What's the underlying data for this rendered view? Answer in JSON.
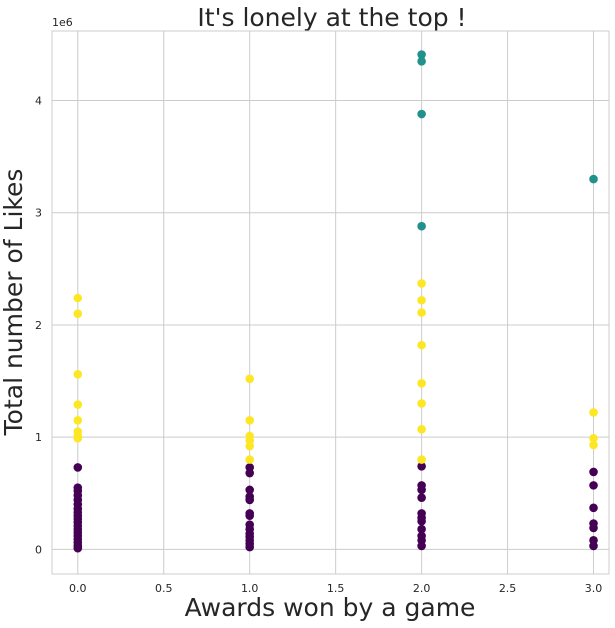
{
  "chart_data": {
    "type": "scatter",
    "title": "It's lonely at the top !",
    "xlabel": "Awards won by a game",
    "ylabel": "Total number of Likes",
    "y_offset_label": "1e6",
    "xlim": [
      -0.15,
      3.09
    ],
    "ylim": [
      -0.22,
      4.62
    ],
    "y_unit_scale": 1000000,
    "x_ticks": [
      0.0,
      0.5,
      1.0,
      1.5,
      2.0,
      2.5,
      3.0
    ],
    "x_tick_labels": [
      "0.0",
      "0.5",
      "1.0",
      "1.5",
      "2.0",
      "2.5",
      "3.0"
    ],
    "y_ticks": [
      0,
      1,
      2,
      3,
      4
    ],
    "y_tick_labels": [
      "0",
      "1",
      "2",
      "3",
      "4"
    ],
    "grid": true,
    "colors": {
      "low": "#440154",
      "mid": "#21918c",
      "high": "#fde725",
      "grid": "#cccccc",
      "text": "#262626"
    },
    "series": [
      {
        "color_key": "low",
        "points": [
          [
            0,
            0.73
          ],
          [
            0,
            0.55
          ],
          [
            0,
            0.52
          ],
          [
            0,
            0.48
          ],
          [
            0,
            0.44
          ],
          [
            0,
            0.4
          ],
          [
            0,
            0.36
          ],
          [
            0,
            0.33
          ],
          [
            0,
            0.3
          ],
          [
            0,
            0.27
          ],
          [
            0,
            0.24
          ],
          [
            0,
            0.21
          ],
          [
            0,
            0.18
          ],
          [
            0,
            0.15
          ],
          [
            0,
            0.12
          ],
          [
            0,
            0.09
          ],
          [
            0,
            0.06
          ],
          [
            0,
            0.03
          ],
          [
            0,
            0.01
          ],
          [
            1,
            0.73
          ],
          [
            1,
            0.68
          ],
          [
            1,
            0.53
          ],
          [
            1,
            0.47
          ],
          [
            1,
            0.44
          ],
          [
            1,
            0.32
          ],
          [
            1,
            0.3
          ],
          [
            1,
            0.22
          ],
          [
            1,
            0.18
          ],
          [
            1,
            0.14
          ],
          [
            1,
            0.11
          ],
          [
            1,
            0.08
          ],
          [
            1,
            0.05
          ],
          [
            1,
            0.02
          ],
          [
            2,
            0.74
          ],
          [
            2,
            0.57
          ],
          [
            2,
            0.53
          ],
          [
            2,
            0.46
          ],
          [
            2,
            0.32
          ],
          [
            2,
            0.28
          ],
          [
            2,
            0.25
          ],
          [
            2,
            0.18
          ],
          [
            2,
            0.12
          ],
          [
            2,
            0.08
          ],
          [
            2,
            0.03
          ],
          [
            3,
            0.69
          ],
          [
            3,
            0.57
          ],
          [
            3,
            0.37
          ],
          [
            3,
            0.23
          ],
          [
            3,
            0.19
          ],
          [
            3,
            0.08
          ],
          [
            3,
            0.03
          ]
        ]
      },
      {
        "color_key": "mid",
        "points": [
          [
            2,
            4.41
          ],
          [
            2,
            4.35
          ],
          [
            2,
            3.88
          ],
          [
            2,
            2.88
          ],
          [
            3,
            3.3
          ]
        ]
      },
      {
        "color_key": "high",
        "points": [
          [
            0,
            2.24
          ],
          [
            0,
            2.1
          ],
          [
            0,
            1.56
          ],
          [
            0,
            1.29
          ],
          [
            0,
            1.15
          ],
          [
            0,
            1.05
          ],
          [
            0,
            1.01
          ],
          [
            0,
            0.99
          ],
          [
            1,
            1.52
          ],
          [
            1,
            1.15
          ],
          [
            1,
            1.01
          ],
          [
            1,
            0.97
          ],
          [
            1,
            0.92
          ],
          [
            1,
            0.8
          ],
          [
            2,
            2.37
          ],
          [
            2,
            2.22
          ],
          [
            2,
            2.11
          ],
          [
            2,
            1.82
          ],
          [
            2,
            1.48
          ],
          [
            2,
            1.3
          ],
          [
            2,
            1.07
          ],
          [
            2,
            0.8
          ],
          [
            3,
            1.22
          ],
          [
            3,
            0.99
          ],
          [
            3,
            0.93
          ]
        ]
      }
    ]
  }
}
